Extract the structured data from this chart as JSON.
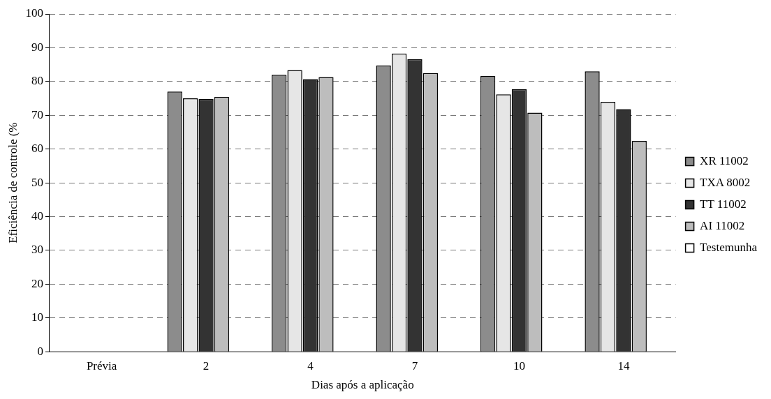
{
  "chart_data": {
    "type": "bar",
    "xlabel": "Dias após a aplicação",
    "ylabel": "Eficiência de controle (%",
    "categories": [
      "Prévia",
      "2",
      "4",
      "7",
      "10",
      "14"
    ],
    "series": [
      {
        "name": "XR 11002",
        "color": "#8c8c8c",
        "values": [
          0,
          77,
          82,
          84.7,
          81.6,
          83
        ]
      },
      {
        "name": "TXA 8002",
        "color": "#e6e6e6",
        "values": [
          0,
          75,
          83.4,
          88.3,
          76.2,
          74
        ]
      },
      {
        "name": "TT 11002",
        "color": "#333333",
        "values": [
          0,
          74.8,
          80.7,
          86.6,
          77.7,
          71.8
        ]
      },
      {
        "name": "AI 11002",
        "color": "#bdbdbd",
        "values": [
          0,
          75.5,
          81.3,
          82.5,
          70.8,
          62.4
        ]
      },
      {
        "name": "Testemunha",
        "color": "#ffffff",
        "values": [
          0,
          0,
          0,
          0,
          0,
          0
        ]
      }
    ],
    "ylim": [
      0,
      100
    ],
    "yticks": [
      0,
      10,
      20,
      30,
      40,
      50,
      60,
      70,
      80,
      90,
      100
    ],
    "grid": "y",
    "legend": "right"
  }
}
